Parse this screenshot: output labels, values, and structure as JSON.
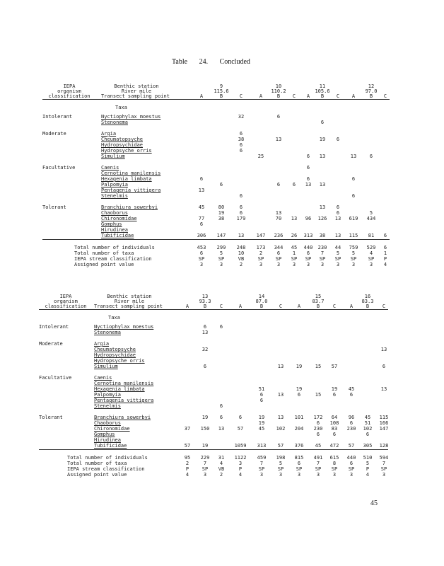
{
  "title": "Table 24. Concluded",
  "page_number": "45",
  "taxa_label": "Taxa",
  "tables": [
    {
      "header": {
        "classification": [
          "IEPA",
          "organism",
          "classification"
        ],
        "station_label": "Benthic station",
        "mile_label": "River mile",
        "transect_label": "Transect sampling point"
      },
      "stations": [
        {
          "station": "9",
          "mile": "115.6"
        },
        {
          "station": "10",
          "mile": "110.2"
        },
        {
          "station": "11",
          "mile": "105.6"
        },
        {
          "station": "12",
          "mile": "97.0"
        }
      ],
      "points": [
        "A",
        "B",
        "C",
        "A",
        "B",
        "C",
        "A",
        "B",
        "C",
        "A",
        "B",
        "C"
      ],
      "groups": [
        {
          "class": "Intolerant",
          "rows": [
            {
              "taxon": "Nyctiophylax moestus",
              "values": [
                "",
                "",
                "32",
                "",
                "6",
                "",
                "",
                "",
                "",
                "",
                "",
                ""
              ]
            },
            {
              "taxon": "Stenonema",
              "values": [
                "",
                "",
                "",
                "",
                "",
                "",
                "",
                "6",
                "",
                "",
                "",
                ""
              ]
            }
          ]
        },
        {
          "class": "Moderate",
          "rows": [
            {
              "taxon": "Argia",
              "values": [
                "",
                "",
                "6",
                "",
                "",
                "",
                "",
                "",
                "",
                "",
                "",
                ""
              ]
            },
            {
              "taxon": "Cheumatopsyche",
              "values": [
                "",
                "",
                "38",
                "",
                "13",
                "",
                "",
                "19",
                "6",
                "",
                "",
                ""
              ]
            },
            {
              "taxon": "Hydropsychidae",
              "values": [
                "",
                "",
                "6",
                "",
                "",
                "",
                "",
                "",
                "",
                "",
                "",
                ""
              ]
            },
            {
              "taxon": "Hydropsyche orris",
              "values": [
                "",
                "",
                "6",
                "",
                "",
                "",
                "",
                "",
                "",
                "",
                "",
                ""
              ]
            },
            {
              "taxon": "Simulium",
              "values": [
                "",
                "",
                "",
                "25",
                "",
                "",
                "6",
                "13",
                "",
                "13",
                "6",
                ""
              ]
            }
          ]
        },
        {
          "class": "Facultative",
          "rows": [
            {
              "taxon": "Caenis",
              "values": [
                "",
                "",
                "",
                "",
                "",
                "",
                "6",
                "",
                "",
                "",
                "",
                ""
              ]
            },
            {
              "taxon": "Cernotina manilensis",
              "values": [
                "",
                "",
                "",
                "",
                "",
                "",
                "",
                "",
                "",
                "",
                "",
                ""
              ]
            },
            {
              "taxon": "Hexagenia limbata",
              "values": [
                "6",
                "",
                "",
                "",
                "",
                "",
                "6",
                "",
                "",
                "6",
                "",
                ""
              ]
            },
            {
              "taxon": "Palpomyia",
              "values": [
                "",
                "6",
                "",
                "",
                "6",
                "6",
                "13",
                "13",
                "",
                "",
                "",
                ""
              ]
            },
            {
              "taxon": "Pentagenia vittigera",
              "values": [
                "13",
                "",
                "",
                "",
                "",
                "",
                "",
                "",
                "",
                "",
                "",
                ""
              ]
            },
            {
              "taxon": "Stenelmis",
              "values": [
                "",
                "",
                "6",
                "",
                "",
                "",
                "",
                "",
                "",
                "6",
                "",
                ""
              ]
            }
          ]
        },
        {
          "class": "Tolerant",
          "rows": [
            {
              "taxon": "Branchiura sowerbyi",
              "values": [
                "45",
                "80",
                "6",
                "",
                "",
                "",
                "",
                "13",
                "6",
                "",
                "",
                ""
              ]
            },
            {
              "taxon": "Chaoborus",
              "values": [
                "",
                "19",
                "6",
                "",
                "13",
                "",
                "",
                "",
                "6",
                "",
                "5",
                ""
              ]
            },
            {
              "taxon": "Chironomidae",
              "values": [
                "77",
                "38",
                "179",
                "",
                "70",
                "13",
                "96",
                "126",
                "13",
                "619",
                "434",
                ""
              ]
            },
            {
              "taxon": "Gomphus",
              "values": [
                "6",
                "",
                "",
                "",
                "",
                "",
                "",
                "",
                "",
                "",
                "",
                ""
              ]
            },
            {
              "taxon": "Hirudinea",
              "values": [
                "",
                "",
                "",
                "",
                "",
                "",
                "",
                "",
                "",
                "",
                "",
                ""
              ]
            },
            {
              "taxon": "Tubificidae",
              "values": [
                "306",
                "147",
                "13",
                "147",
                "236",
                "26",
                "313",
                "38",
                "13",
                "115",
                "81",
                "6"
              ]
            }
          ]
        }
      ],
      "summary": [
        {
          "label": "Total number of individuals",
          "values": [
            "453",
            "299",
            "248",
            "173",
            "344",
            "45",
            "440",
            "230",
            "44",
            "759",
            "529",
            "6"
          ]
        },
        {
          "label": "Total number of taxa",
          "values": [
            "6",
            "5",
            "10",
            "2",
            "6",
            "1",
            "6",
            "7",
            "5",
            "5",
            "4",
            "1"
          ]
        },
        {
          "label": "IEPA stream classification",
          "values": [
            "SP",
            "SP",
            "VB",
            "SP",
            "SP",
            "SP",
            "SP",
            "SP",
            "SP",
            "SP",
            "SP",
            "P"
          ]
        },
        {
          "label": "Assigned point value",
          "values": [
            "3",
            "3",
            "2",
            "3",
            "3",
            "3",
            "3",
            "3",
            "3",
            "3",
            "3",
            "4"
          ]
        }
      ]
    },
    {
      "header": {
        "classification": [
          "IEPA",
          "organism",
          "classification"
        ],
        "station_label": "Benthic station",
        "mile_label": "River mile",
        "transect_label": "Transect sampling point"
      },
      "stations": [
        {
          "station": "13",
          "mile": "93.3"
        },
        {
          "station": "14",
          "mile": "87.0"
        },
        {
          "station": "15",
          "mile": "83.7"
        },
        {
          "station": "16",
          "mile": "83.3"
        }
      ],
      "points": [
        "A",
        "B",
        "C",
        "A",
        "B",
        "C",
        "A",
        "B",
        "C",
        "A",
        "B",
        "C"
      ],
      "groups": [
        {
          "class": "Intolerant",
          "rows": [
            {
              "taxon": "Nyctiophylax moestus",
              "values": [
                "",
                "6",
                "6",
                "",
                "",
                "",
                "",
                "",
                "",
                "",
                "",
                ""
              ]
            },
            {
              "taxon": "Stenonema",
              "values": [
                "",
                "13",
                "",
                "",
                "",
                "",
                "",
                "",
                "",
                "",
                "",
                ""
              ]
            }
          ]
        },
        {
          "class": "Moderate",
          "rows": [
            {
              "taxon": "Argia",
              "values": [
                "",
                "",
                "",
                "",
                "",
                "",
                "",
                "",
                "",
                "",
                "",
                ""
              ]
            },
            {
              "taxon": "Cheumatopsyche",
              "values": [
                "",
                "32",
                "",
                "",
                "",
                "",
                "",
                "",
                "",
                "",
                "",
                "13"
              ]
            },
            {
              "taxon": "Hydropsychidae",
              "values": [
                "",
                "",
                "",
                "",
                "",
                "",
                "",
                "",
                "",
                "",
                "",
                ""
              ]
            },
            {
              "taxon": "Hydropsyche orris",
              "values": [
                "",
                "",
                "",
                "",
                "",
                "",
                "",
                "",
                "",
                "",
                "",
                ""
              ]
            },
            {
              "taxon": "Simulium",
              "values": [
                "",
                "6",
                "",
                "",
                "",
                "13",
                "19",
                "15",
                "57",
                "",
                "",
                "6"
              ]
            }
          ]
        },
        {
          "class": "Facultative",
          "rows": [
            {
              "taxon": "Caenis",
              "values": [
                "",
                "",
                "",
                "",
                "",
                "",
                "",
                "",
                "",
                "",
                "",
                ""
              ]
            },
            {
              "taxon": "Cernotina manilensis",
              "values": [
                "",
                "",
                "",
                "",
                "",
                "",
                "",
                "",
                "",
                "",
                "",
                ""
              ]
            },
            {
              "taxon": "Hexagenia limbata",
              "values": [
                "",
                "",
                "",
                "",
                "51",
                "",
                "19",
                "",
                "19",
                "45",
                "",
                "13"
              ]
            },
            {
              "taxon": "Palpomyia",
              "values": [
                "",
                "",
                "",
                "",
                "6",
                "13",
                "6",
                "15",
                "6",
                "6",
                "",
                ""
              ]
            },
            {
              "taxon": "Pentagenia vittigera",
              "values": [
                "",
                "",
                "",
                "",
                "6",
                "",
                "",
                "",
                "",
                "",
                "",
                ""
              ]
            },
            {
              "taxon": "Stenelmis",
              "values": [
                "",
                "",
                "6",
                "",
                "",
                "",
                "",
                "",
                "",
                "",
                "",
                ""
              ]
            }
          ]
        },
        {
          "class": "Tolerant",
          "rows": [
            {
              "taxon": "Branchiura sowerbyi",
              "values": [
                "",
                "19",
                "6",
                "6",
                "19",
                "13",
                "101",
                "172",
                "64",
                "96",
                "45",
                "115"
              ]
            },
            {
              "taxon": "Chaoborus",
              "values": [
                "",
                "",
                "",
                "",
                "19",
                "",
                "",
                "6",
                "108",
                "6",
                "51",
                "166"
              ]
            },
            {
              "taxon": "Chironomidae",
              "values": [
                "37",
                "150",
                "13",
                "57",
                "45",
                "102",
                "204",
                "230",
                "83",
                "230",
                "102",
                "147"
              ]
            },
            {
              "taxon": "Gomphus",
              "values": [
                "",
                "",
                "",
                "",
                "",
                "",
                "",
                "6",
                "6",
                "",
                "6",
                ""
              ]
            },
            {
              "taxon": "Hirudinea",
              "values": [
                "",
                "",
                "",
                "",
                "",
                "",
                "",
                "",
                "",
                "",
                "",
                ""
              ]
            },
            {
              "taxon": "Tubificidae",
              "values": [
                "57",
                "19",
                "",
                "1059",
                "313",
                "57",
                "376",
                "45",
                "472",
                "57",
                "305",
                "128"
              ]
            }
          ]
        }
      ],
      "summary": [
        {
          "label": "Total number of individuals",
          "values": [
            "95",
            "229",
            "31",
            "1122",
            "459",
            "198",
            "815",
            "491",
            "615",
            "440",
            "510",
            "594"
          ]
        },
        {
          "label": "Total number of taxa",
          "values": [
            "2",
            "7",
            "4",
            "3",
            "7",
            "5",
            "6",
            "7",
            "8",
            "6",
            "5",
            "7"
          ]
        },
        {
          "label": "IEPA stream classification",
          "values": [
            "P",
            "SP",
            "VB",
            "P",
            "SP",
            "SP",
            "SP",
            "SP",
            "SP",
            "SP",
            "P",
            "SP"
          ]
        },
        {
          "label": "Assigned point value",
          "values": [
            "4",
            "3",
            "2",
            "4",
            "3",
            "3",
            "3",
            "3",
            "3",
            "3",
            "4",
            "3"
          ]
        }
      ]
    }
  ]
}
